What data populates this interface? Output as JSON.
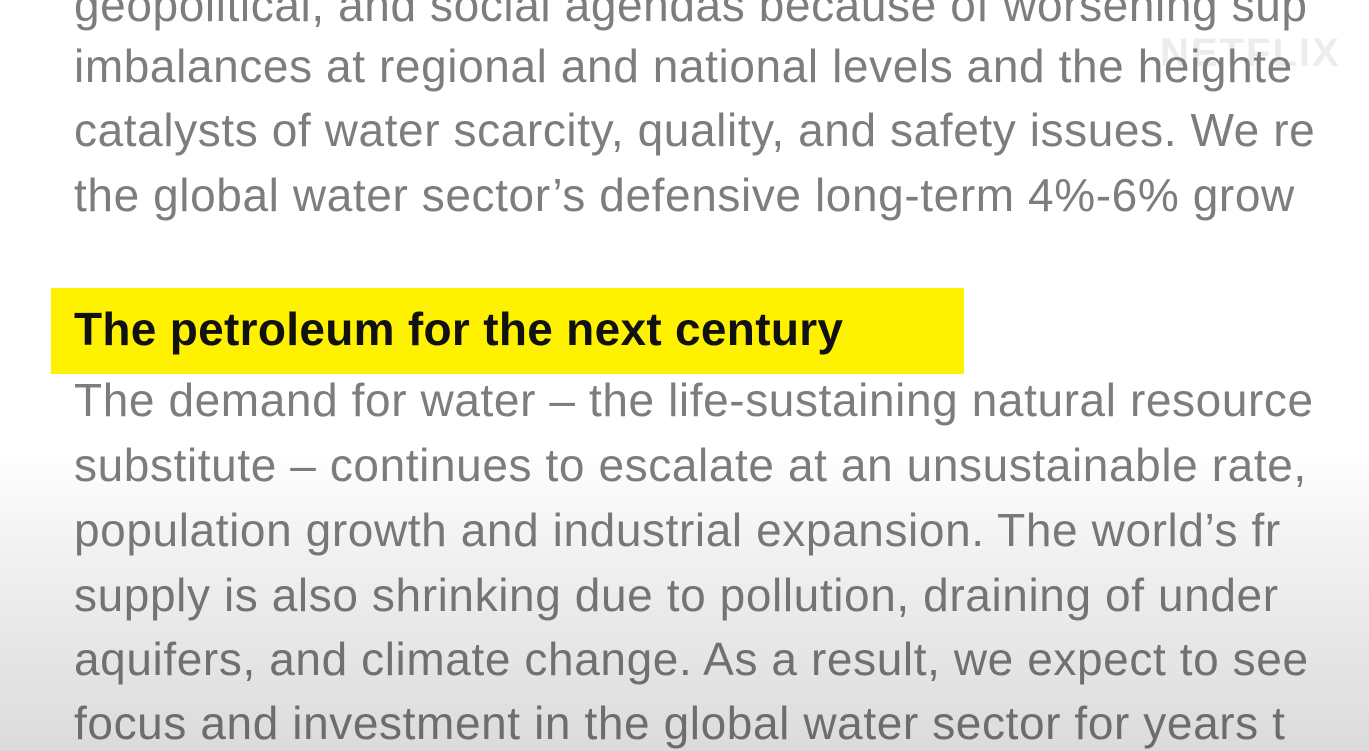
{
  "watermark": "NETFLIX",
  "intro_lines": [
    "geopolitical, and social agendas because of worsening sup",
    "imbalances at regional and national levels and the heighte",
    "catalysts of water scarcity, quality, and safety issues. We re",
    "the global water sector’s defensive long-term 4%-6% grow"
  ],
  "heading": "The petroleum for the next century",
  "body_lines": [
    "The demand for water – the life-sustaining natural resource",
    "substitute – continues to escalate at an unsustainable rate,",
    "population growth and industrial expansion. The world’s fr",
    "supply is also shrinking due to pollution, draining of under",
    "aquifers, and climate change. As a result, we expect to see",
    "focus and investment in the global water sector for years t"
  ]
}
